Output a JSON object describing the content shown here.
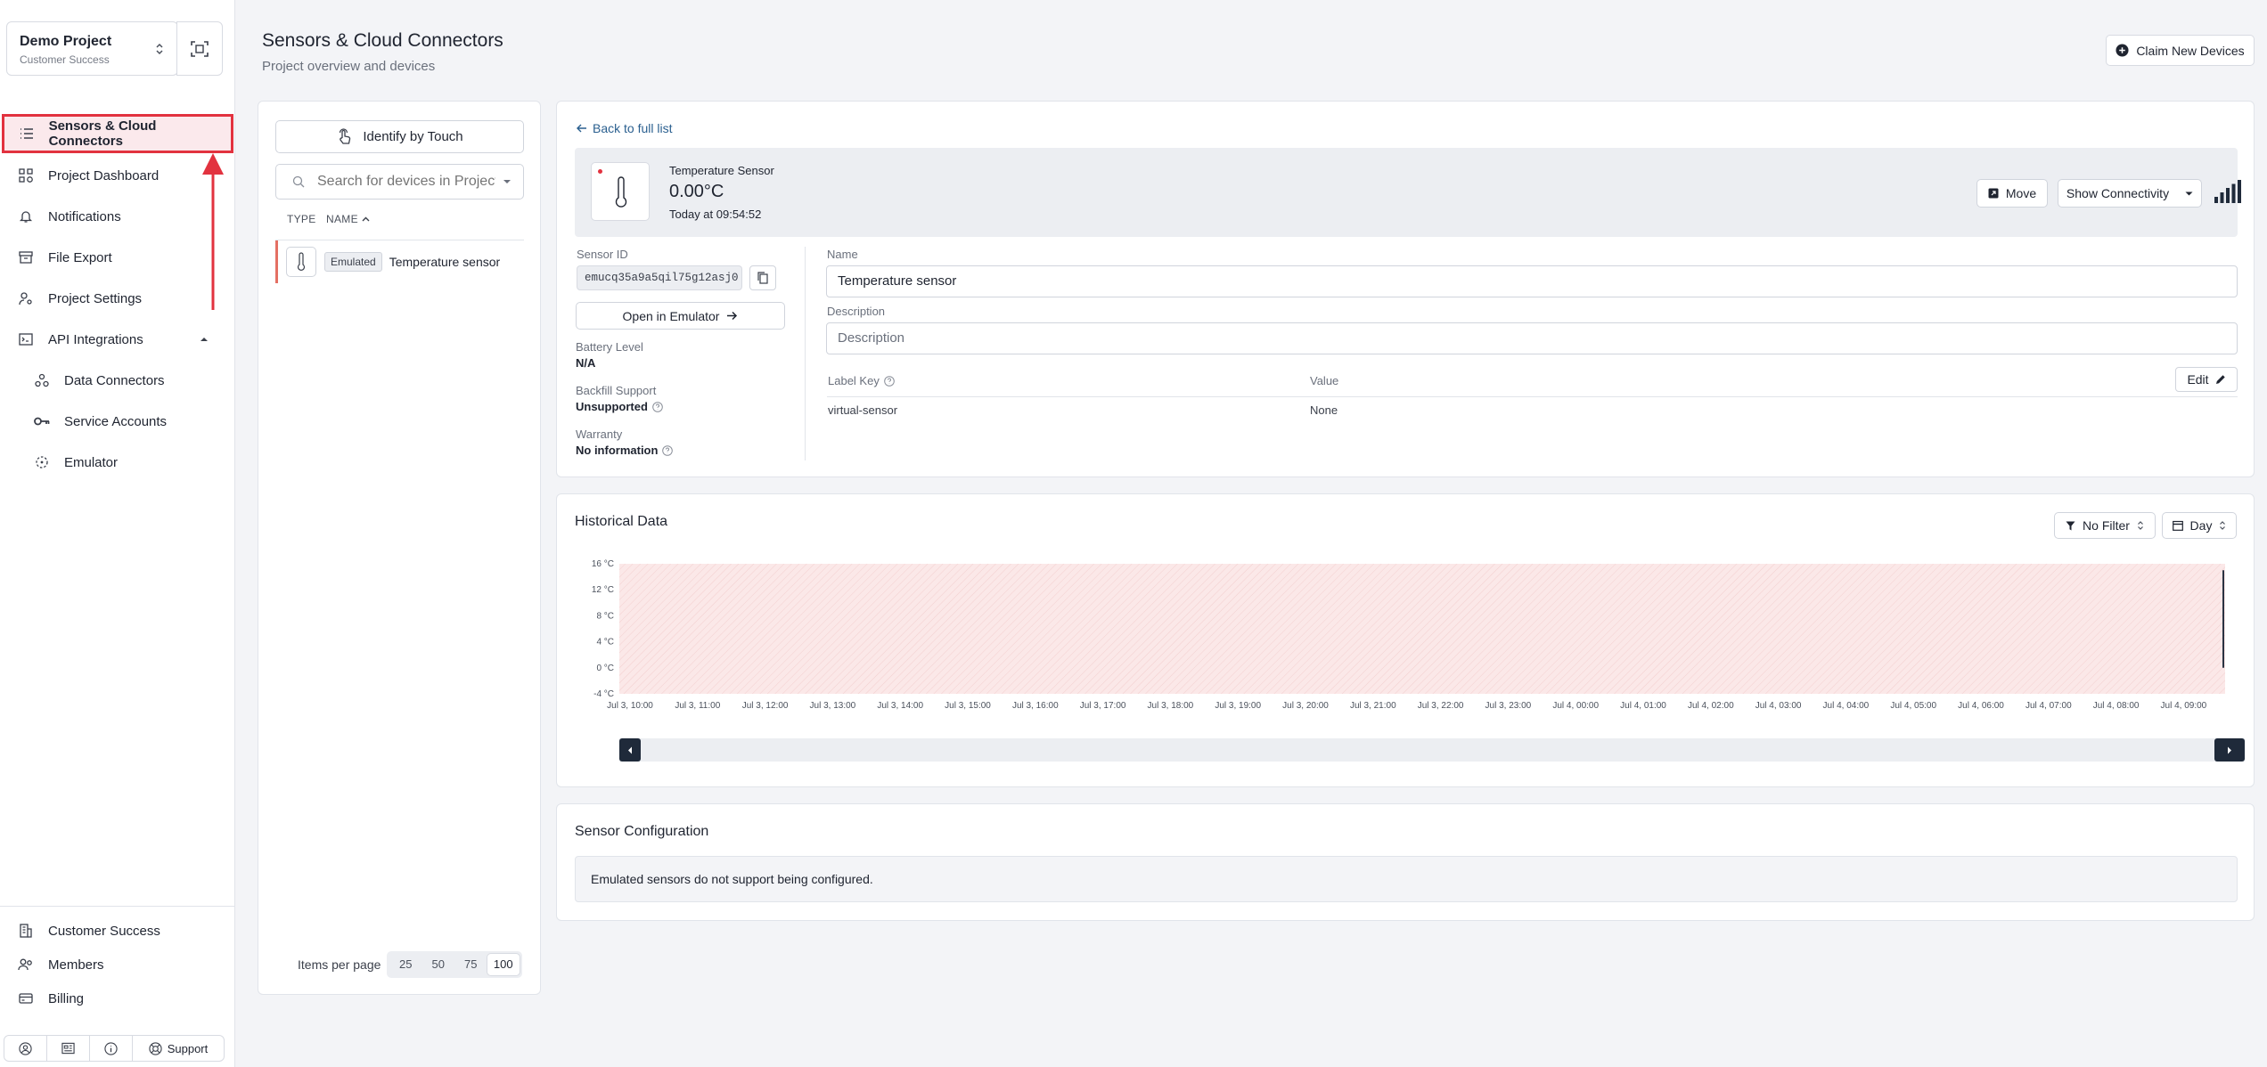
{
  "project": {
    "name": "Demo Project",
    "subtitle": "Customer Success"
  },
  "nav": {
    "sensors": "Sensors & Cloud Connectors",
    "dashboard": "Project Dashboard",
    "notifications": "Notifications",
    "file_export": "File Export",
    "project_settings": "Project Settings",
    "api_integrations": "API Integrations",
    "data_connectors": "Data Connectors",
    "service_accounts": "Service Accounts",
    "emulator": "Emulator"
  },
  "nav_footer": {
    "customer_success": "Customer Success",
    "members": "Members",
    "billing": "Billing",
    "support": "Support"
  },
  "header": {
    "title": "Sensors & Cloud Connectors",
    "subtitle": "Project overview and devices",
    "claim_button": "Claim New Devices"
  },
  "device_list": {
    "identify_button": "Identify by Touch",
    "search_placeholder": "Search for devices in Project",
    "col_type": "TYPE",
    "col_name": "NAME",
    "rows": [
      {
        "badge": "Emulated",
        "name": "Temperature sensor"
      }
    ],
    "items_per_page_label": "Items per page",
    "page_sizes": [
      "25",
      "50",
      "75",
      "100"
    ],
    "selected_page_size": "100"
  },
  "detail": {
    "back_link": "Back to full list",
    "sensor_type": "Temperature Sensor",
    "reading": "0.00°C",
    "reading_time": "Today at 09:54:52",
    "move_button": "Move",
    "connectivity_button": "Show Connectivity",
    "sensor_id_label": "Sensor ID",
    "sensor_id": "emucq35a9a5qil75g12asj0",
    "open_emulator_button": "Open in Emulator",
    "battery_label": "Battery Level",
    "battery_value": "N/A",
    "backfill_label": "Backfill Support",
    "backfill_value": "Unsupported",
    "warranty_label": "Warranty",
    "warranty_value": "No information",
    "name_label": "Name",
    "name_value": "Temperature sensor",
    "description_label": "Description",
    "description_placeholder": "Description",
    "label_key_header": "Label Key",
    "value_header": "Value",
    "edit_button": "Edit",
    "labels": [
      {
        "key": "virtual-sensor",
        "value": "None"
      }
    ]
  },
  "historical": {
    "title": "Historical Data",
    "filter_button": "No Filter",
    "range_button": "Day"
  },
  "chart_data": {
    "type": "line",
    "y_ticks": [
      "16 °C",
      "12 °C",
      "8 °C",
      "4 °C",
      "0 °C",
      "-4 °C"
    ],
    "ylim": [
      -4,
      16
    ],
    "x_ticks": [
      "Jul 3, 10:00",
      "Jul 3, 11:00",
      "Jul 3, 12:00",
      "Jul 3, 13:00",
      "Jul 3, 14:00",
      "Jul 3, 15:00",
      "Jul 3, 16:00",
      "Jul 3, 17:00",
      "Jul 3, 18:00",
      "Jul 3, 19:00",
      "Jul 3, 20:00",
      "Jul 3, 21:00",
      "Jul 3, 22:00",
      "Jul 3, 23:00",
      "Jul 4, 00:00",
      "Jul 4, 01:00",
      "Jul 4, 02:00",
      "Jul 4, 03:00",
      "Jul 4, 04:00",
      "Jul 4, 05:00",
      "Jul 4, 06:00",
      "Jul 4, 07:00",
      "Jul 4, 08:00",
      "Jul 4, 09:00"
    ],
    "series": [
      {
        "x": [
          "Jul 4, 09:53",
          "Jul 4, 09:54",
          "Jul 4, 09:55"
        ],
        "values": [
          9,
          15,
          0
        ]
      }
    ],
    "line_color": "#2a3342",
    "band_color": "#fbe3e3"
  },
  "config": {
    "title": "Sensor Configuration",
    "note": "Emulated sensors do not support being configured."
  }
}
